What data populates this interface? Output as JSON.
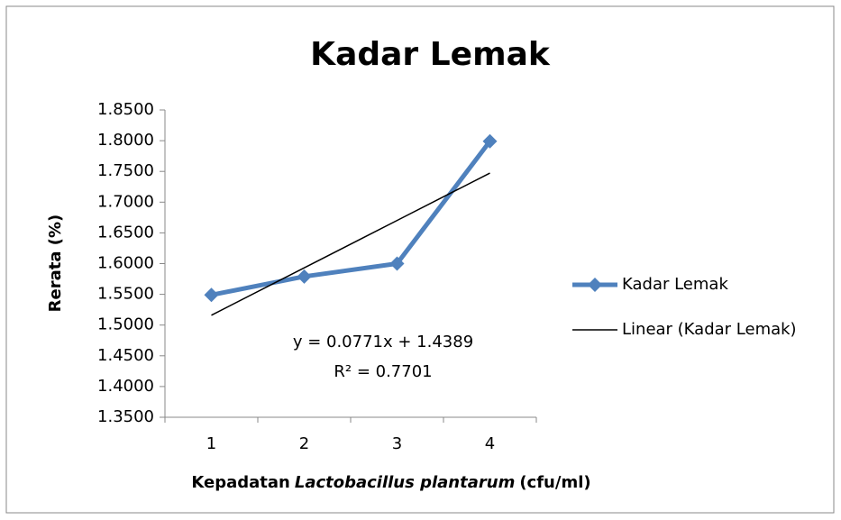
{
  "chart_data": {
    "type": "line",
    "title": "Kadar Lemak",
    "y_label": "Rerata (%)",
    "x_label_parts": [
      "Kepadatan",
      "Lactobacillus plantarum",
      "(cfu/ml)"
    ],
    "categories": [
      "1",
      "2",
      "3",
      "4"
    ],
    "series": [
      {
        "name": "Kadar Lemak",
        "color": "#4f81bd",
        "values": [
          1.549,
          1.579,
          1.6,
          1.799
        ]
      },
      {
        "name": "Linear (Kadar Lemak)",
        "color": "#000000",
        "values": [
          1.516,
          1.5931,
          1.6702,
          1.7473
        ]
      }
    ],
    "annotations": [
      "y = 0.0771x + 1.4389",
      "R² = 0.7701"
    ],
    "ylim": [
      1.35,
      1.85
    ],
    "yticks": [
      {
        "value": 1.35,
        "label": "1.3500"
      },
      {
        "value": 1.4,
        "label": "1.4000"
      },
      {
        "value": 1.45,
        "label": "1.4500"
      },
      {
        "value": 1.5,
        "label": "1.5000"
      },
      {
        "value": 1.55,
        "label": "1.5500"
      },
      {
        "value": 1.6,
        "label": "1.6000"
      },
      {
        "value": 1.65,
        "label": "1.6500"
      },
      {
        "value": 1.7,
        "label": "1.7000"
      },
      {
        "value": 1.75,
        "label": "1.7500"
      },
      {
        "value": 1.8,
        "label": "1.8000"
      },
      {
        "value": 1.85,
        "label": "1.8500"
      }
    ],
    "grid": false,
    "legend": "right"
  }
}
